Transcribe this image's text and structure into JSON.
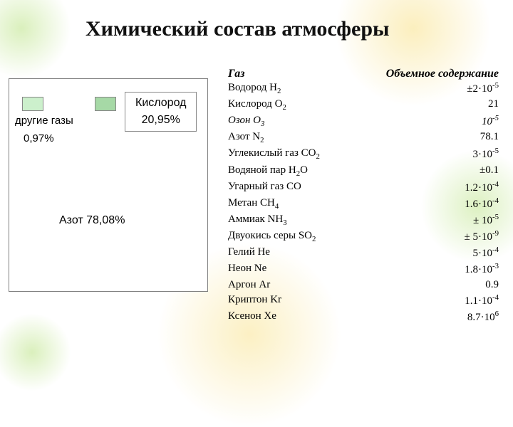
{
  "title": "Химический состав атмосферы",
  "chart": {
    "other_label": "другие газы",
    "other_pct": "0,97%",
    "oxygen_label": "Кислород",
    "oxygen_pct": "20,95%",
    "nitrogen_line": "Азот 78,08%",
    "colors": {
      "other": "#ccf0cc",
      "oxygen": "#a6d9a6",
      "border": "#808080"
    }
  },
  "table": {
    "header_gas": "Газ",
    "header_vol": "Объемное содержание",
    "rows": [
      {
        "name_html": "Водород H<sub>2</sub>",
        "value_html": "±2·10<sup>-5</sup>"
      },
      {
        "name_html": "Кислород O<sub>2</sub>",
        "value_html": "21"
      },
      {
        "name_html": "Озон O<sub>3</sub>",
        "value_html": "10<sup>-5</sup>",
        "italic": true
      },
      {
        "name_html": "Азот N<sub>2</sub>",
        "value_html": "78.1"
      },
      {
        "name_html": "Углекислый газ CO<sub>2</sub>",
        "value_html": "3·10<sup>-5</sup>"
      },
      {
        "name_html": "Водяной пар H<sub>2</sub>O",
        "value_html": "±0.1"
      },
      {
        "name_html": "Угарный газ CO",
        "value_html": "1.2·10<sup>-4</sup>"
      },
      {
        "name_html": "Метан CH<sub>4</sub>",
        "value_html": "1.6·10<sup>-4</sup>"
      },
      {
        "name_html": "Аммиак NH<sub>3</sub>",
        "value_html": "± 10<sup>-5</sup>"
      },
      {
        "name_html": "Двуокись серы SO<sub>2</sub>",
        "value_html": " ± 5·10<sup>-9</sup>"
      },
      {
        "name_html": "Гелий He",
        "value_html": "5·10<sup>-4</sup>"
      },
      {
        "name_html": "Неон Ne",
        "value_html": "1.8·10<sup>-3</sup>"
      },
      {
        "name_html": "Аргон Ar",
        "value_html": "0.9"
      },
      {
        "name_html": "Криптон Kr",
        "value_html": "1.1·10<sup>-4</sup>"
      },
      {
        "name_html": "Ксенон Xe",
        "value_html": "8.7·10<sup>6</sup>"
      }
    ]
  },
  "styling": {
    "title_fontsize": 30,
    "body_fontsize": 15,
    "font_family": "Times New Roman",
    "chart_font_family": "Arial",
    "background": "#ffffff",
    "text_color": "#000000"
  }
}
